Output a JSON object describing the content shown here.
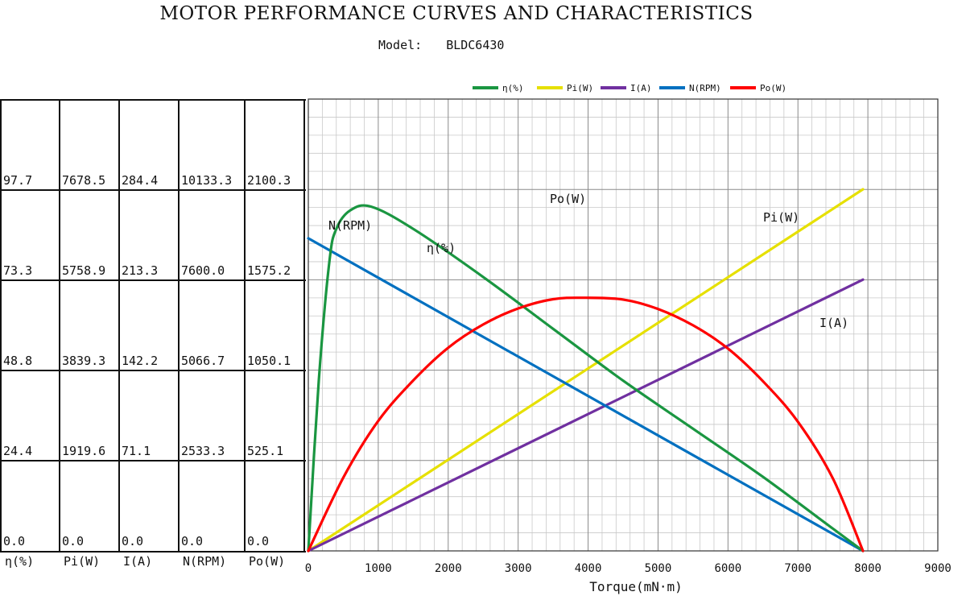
{
  "header": {
    "title": "MOTOR PERFORMANCE CURVES AND CHARACTERISTICS",
    "model_label": "Model:",
    "model_value": "BLDC6430"
  },
  "scale_table": {
    "columns": [
      {
        "key": "eta",
        "label": "η(%)",
        "values": [
          "97.7",
          "73.3",
          "48.8",
          "24.4",
          "0.0"
        ]
      },
      {
        "key": "pi",
        "label": "Pi(W)",
        "values": [
          "7678.5",
          "5758.9",
          "3839.3",
          "1919.6",
          "0.0"
        ]
      },
      {
        "key": "i",
        "label": "I(A)",
        "values": [
          "284.4",
          "213.3",
          "142.2",
          "71.1",
          "0.0"
        ]
      },
      {
        "key": "n",
        "label": "N(RPM)",
        "values": [
          "10133.3",
          "7600.0",
          "5066.7",
          "2533.3",
          "0.0"
        ]
      },
      {
        "key": "po",
        "label": "Po(W)",
        "values": [
          "2100.3",
          "1575.2",
          "1050.1",
          "525.1",
          "0.0"
        ]
      }
    ]
  },
  "chart_data": {
    "type": "line",
    "xlabel": "Torque(mN·m)",
    "xlim": [
      0,
      9000
    ],
    "x_ticks": [
      "0",
      "1000",
      "2000",
      "3000",
      "4000",
      "5000",
      "6000",
      "7000",
      "8000",
      "9000"
    ],
    "grid": true,
    "legend_position": "top",
    "series": [
      {
        "name": "η(%)",
        "label": "η(%)",
        "color": "#1a9641",
        "x": [
          0,
          150,
          300,
          400,
          600,
          900,
          1500,
          2500,
          3500,
          4500,
          5500,
          6500,
          7500,
          7930
        ],
        "y": [
          0,
          46,
          78,
          87,
          92,
          93,
          87,
          74,
          60,
          46,
          33,
          20,
          6,
          0
        ]
      },
      {
        "name": "Pi(W)",
        "label": "Pi(W)",
        "color": "#e6e000",
        "x": [
          0,
          7930
        ],
        "y": [
          0,
          7678.5
        ]
      },
      {
        "name": "I(A)",
        "label": "I(A)",
        "color": "#7030a0",
        "x": [
          0,
          7930
        ],
        "y": [
          0,
          213.3
        ]
      },
      {
        "name": "N(RPM)",
        "label": "N(RPM)",
        "color": "#0070c0",
        "x": [
          0,
          7930
        ],
        "y": [
          8760,
          0
        ]
      },
      {
        "name": "Po(W)",
        "label": "Po(W)",
        "color": "#ff0000",
        "x": [
          0,
          500,
          1000,
          1500,
          2000,
          2500,
          3000,
          3500,
          3965,
          4500,
          5000,
          5500,
          6000,
          6500,
          7000,
          7500,
          7930
        ],
        "y": [
          0,
          425,
          755,
          990,
          1180,
          1315,
          1408,
          1462,
          1470,
          1460,
          1405,
          1310,
          1175,
          985,
          750,
          420,
          0
        ]
      }
    ]
  }
}
